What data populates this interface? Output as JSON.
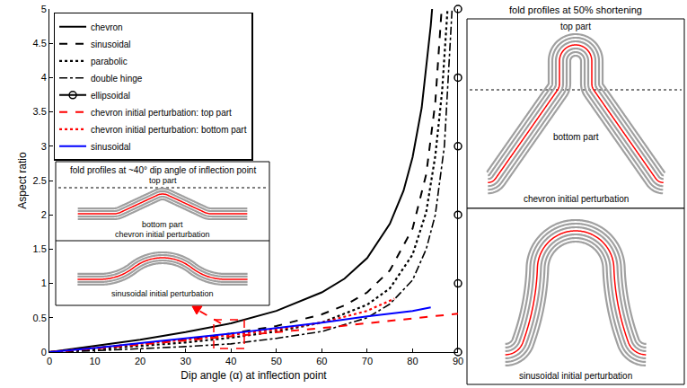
{
  "chart_data": {
    "type": "line",
    "xlabel": "Dip angle (α) at inflection point",
    "ylabel": "Aspect ratio",
    "xlim": [
      0,
      90
    ],
    "ylim": [
      0,
      5
    ],
    "xticks": [
      0,
      10,
      20,
      30,
      40,
      50,
      60,
      70,
      80,
      90
    ],
    "yticks": [
      0,
      0.5,
      1,
      1.5,
      2,
      2.5,
      3,
      3.5,
      4,
      4.5,
      5
    ],
    "grid": false,
    "legend": "upper left",
    "series": [
      {
        "name": "chevron",
        "color": "#000000",
        "line_style": "solid",
        "x": [
          0,
          10,
          20,
          30,
          40,
          50,
          60,
          65,
          70,
          75,
          78,
          80,
          82,
          84,
          84.3
        ],
        "values": [
          0,
          0.09,
          0.18,
          0.29,
          0.42,
          0.6,
          0.87,
          1.07,
          1.37,
          1.87,
          2.35,
          2.84,
          3.56,
          4.76,
          5
        ]
      },
      {
        "name": "sinusoidal",
        "color": "#000000",
        "line_style": "dash",
        "x": [
          0,
          10,
          20,
          30,
          40,
          50,
          60,
          65,
          70,
          75,
          80,
          83,
          85,
          86.4
        ],
        "values": [
          0,
          0.06,
          0.12,
          0.18,
          0.27,
          0.38,
          0.55,
          0.68,
          0.87,
          1.19,
          1.8,
          2.59,
          3.64,
          5
        ]
      },
      {
        "name": "parabolic",
        "color": "#000000",
        "line_style": "dot",
        "x": [
          0,
          10,
          20,
          30,
          40,
          50,
          60,
          70,
          75,
          80,
          83,
          85,
          86.5,
          87.7
        ],
        "values": [
          0,
          0.04,
          0.09,
          0.14,
          0.21,
          0.3,
          0.43,
          0.69,
          0.93,
          1.42,
          2.04,
          2.86,
          3.8,
          5
        ]
      },
      {
        "name": "double hinge",
        "color": "#000000",
        "line_style": "dashdot",
        "x": [
          0,
          10,
          20,
          30,
          40,
          50,
          60,
          70,
          75,
          80,
          83,
          85,
          87,
          88.7
        ],
        "values": [
          0,
          0.02,
          0.05,
          0.08,
          0.12,
          0.2,
          0.3,
          0.5,
          0.7,
          1.05,
          1.5,
          2,
          3,
          5
        ]
      },
      {
        "name": "ellipsoidal",
        "color": "#000000",
        "line_style": "solid",
        "marker": "circle",
        "x": [
          90,
          90,
          90,
          90,
          90,
          90
        ],
        "values": [
          0,
          1,
          2,
          3,
          4,
          5
        ]
      },
      {
        "name": "chevron initial perturbation: top part",
        "color": "#ff0000",
        "line_style": "dash",
        "x": [
          0,
          10,
          20,
          30,
          40,
          50,
          60,
          70,
          80,
          90
        ],
        "values": [
          0,
          0.05,
          0.11,
          0.17,
          0.23,
          0.29,
          0.35,
          0.42,
          0.49,
          0.56
        ]
      },
      {
        "name": "chevron initial perturbation: bottom part",
        "color": "#ff0000",
        "line_style": "dot",
        "x": [
          0,
          10,
          20,
          30,
          40,
          50,
          60,
          70,
          76
        ],
        "values": [
          0,
          0.06,
          0.12,
          0.18,
          0.25,
          0.33,
          0.43,
          0.6,
          0.78
        ]
      },
      {
        "name": "sinusoidal",
        "color": "#0000ff",
        "line_style": "solid",
        "x": [
          0,
          10,
          20,
          30,
          40,
          50,
          60,
          70,
          80,
          84
        ],
        "values": [
          0,
          0.06,
          0.13,
          0.2,
          0.27,
          0.35,
          0.43,
          0.52,
          0.6,
          0.65
        ]
      }
    ],
    "annotations": {
      "left_title": "fold profiles at ~40° dip angle of inflection point",
      "left_top": "top part",
      "left_bottom": "bottom part",
      "left_chevron": "chevron initial perturbation",
      "left_sinusoidal": "sinusoidal initial perturbation",
      "right_title": "fold profiles at 50% shortening",
      "right_top": "top part",
      "right_bottom": "bottom part",
      "right_chevron": "chevron initial perturbation",
      "right_sinusoidal": "sinusoidal initial perturbation"
    }
  }
}
